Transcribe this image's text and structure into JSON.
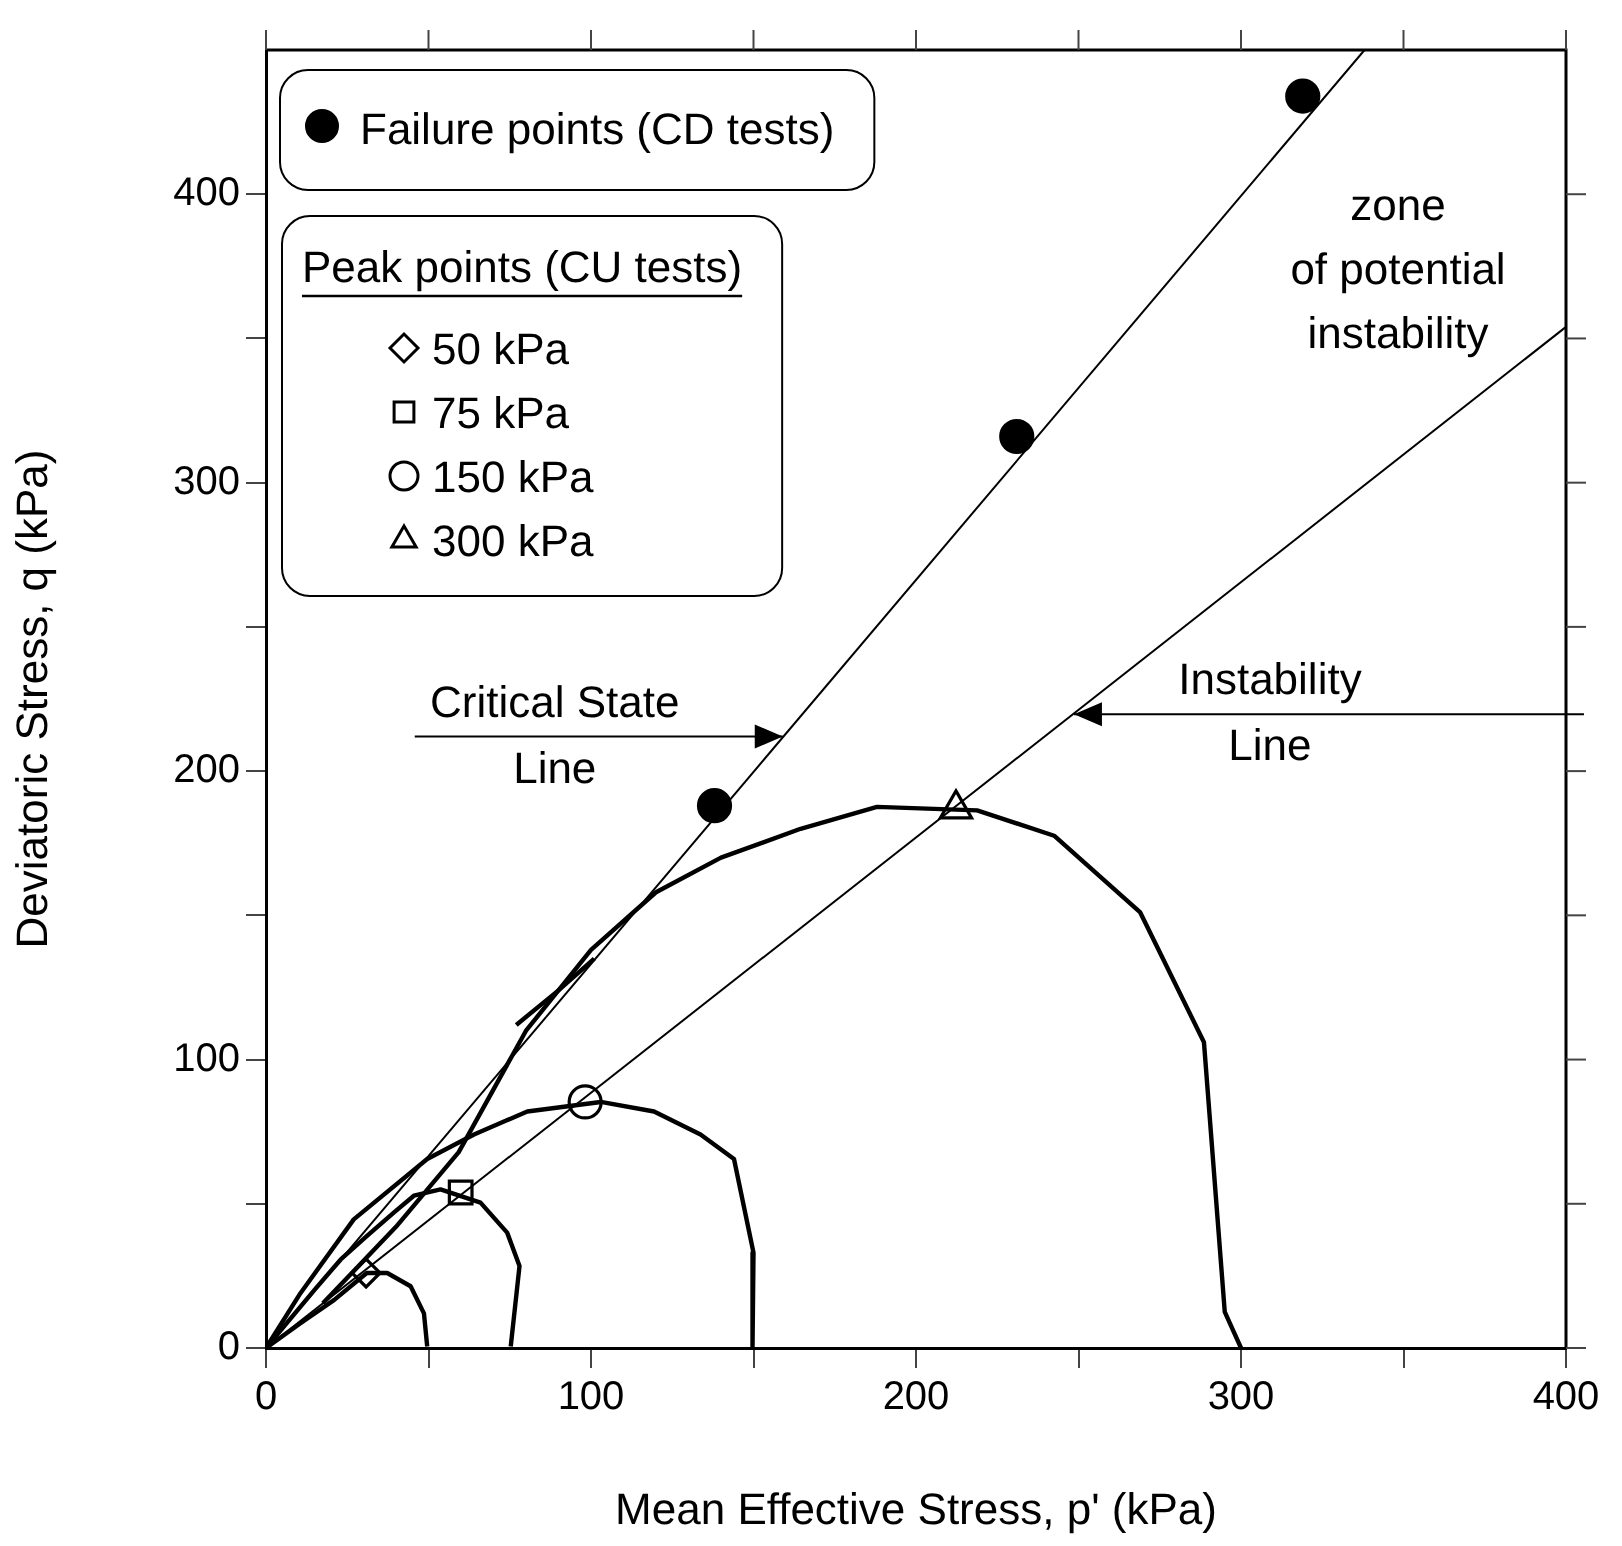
{
  "chart_data": {
    "type": "line",
    "xlabel": "Mean Effective Stress, p' (kPa)",
    "ylabel": "Deviatoric Stress, q (kPa)",
    "legend_title": "Peak points (CU tests)",
    "legend": "top left",
    "grid": false,
    "marker": "none",
    "line_style": "solid",
    "xlim": [
      0,
      400
    ],
    "ylim": [
      0,
      450
    ],
    "xticks": [
      0,
      {
        "value": 50,
        "label": null
      },
      100,
      {
        "value": 150,
        "label": null
      },
      200,
      {
        "value": 250,
        "label": null
      },
      300,
      {
        "value": 350,
        "label": null
      },
      400
    ],
    "yticks": [
      0,
      {
        "value": 50,
        "label": null
      },
      100,
      {
        "value": 150,
        "label": null
      },
      200,
      {
        "value": 250,
        "label": null
      },
      300,
      {
        "value": 350,
        "label": null
      },
      400
    ],
    "series": [
      {
        "color": "#000000",
        "x": [
          0,
          338
        ],
        "values": [
          0,
          450
        ]
      },
      {
        "color": "#000000",
        "x": [
          0,
          400
        ],
        "values": [
          0,
          354
        ]
      },
      {
        "color": "#000000",
        "x": [
          0,
          10.6,
          21,
          31,
          37.3,
          44.5,
          48.6,
          49.6
        ],
        "values": [
          0,
          8.6,
          16.7,
          26,
          26,
          21.4,
          12,
          0.5
        ]
      },
      {
        "color": "#000000",
        "x": [
          0,
          14.8,
          23,
          31,
          39.4,
          45.5,
          53.7,
          66,
          74.2,
          78,
          75.3
        ],
        "values": [
          0,
          20,
          30.7,
          38.8,
          47,
          52.8,
          55,
          50.4,
          40,
          28.4,
          0.5
        ]
      },
      {
        "color": "#000000",
        "x": [
          0,
          10.6,
          27,
          49.6,
          64,
          80.4,
          103,
          119.4,
          133.7,
          144,
          150,
          149.7
        ],
        "values": [
          0,
          19,
          44.6,
          65.5,
          74,
          82,
          85.3,
          82,
          74,
          65.5,
          33,
          0.5
        ]
      },
      {
        "color": "#000000",
        "x": [
          17.5,
          40,
          59.3,
          80,
          100,
          120,
          140,
          164.5,
          188,
          218.8,
          242.5,
          269,
          288.6,
          295,
          300
        ],
        "values": [
          15.5,
          42,
          67.9,
          110,
          138,
          158,
          170,
          180,
          187.6,
          186.4,
          177.6,
          151,
          106,
          12.5,
          0
        ]
      },
      {
        "color": "#000000",
        "x": [
          77,
          90,
          101
        ],
        "values": [
          112,
          124,
          135
        ]
      },
      {
        "type": "scatter",
        "name": "Failure points (CD tests)",
        "color": "#000000",
        "marker": "circle",
        "x": [
          138,
          231,
          319
        ],
        "values": [
          188,
          316,
          434
        ]
      },
      {
        "type": "scatter",
        "name": "50 kPa",
        "color": "#000000",
        "marker": "diamond",
        "x": [
          30.8
        ],
        "values": [
          26
        ]
      },
      {
        "type": "scatter",
        "name": "75 kPa",
        "color": "#000000",
        "marker": "square",
        "x": [
          59.9
        ],
        "values": [
          53.9
        ]
      },
      {
        "type": "scatter",
        "name": "150 kPa",
        "color": "#000000",
        "marker": "circle",
        "x": [
          98.2
        ],
        "values": [
          85.3
        ]
      },
      {
        "type": "scatter",
        "name": "300 kPa",
        "color": "#000000",
        "marker": "triangle",
        "x": [
          212.3
        ],
        "values": [
          186.9
        ]
      }
    ],
    "annotations": [
      {
        "text": "Critical State\nLine",
        "x": 159,
        "y": 212
      },
      {
        "text": "Instability\nLine",
        "x": 248.6,
        "y": 219.7
      },
      "zone\nof potential\ninstability"
    ]
  }
}
